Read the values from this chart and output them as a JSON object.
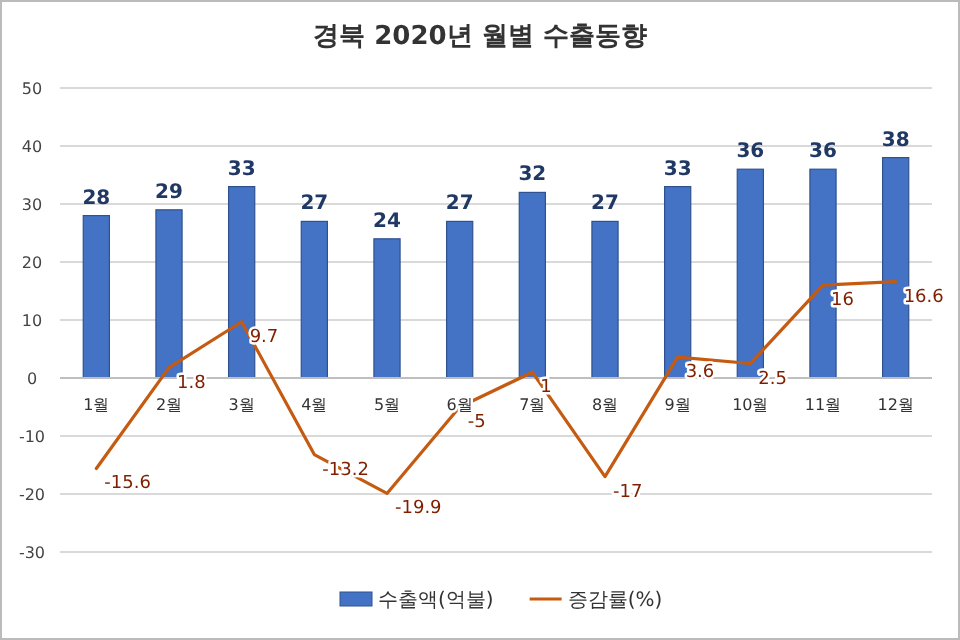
{
  "chart_data": {
    "type": "bar",
    "title": "경북 2020년 월별 수출동향",
    "categories": [
      "1월",
      "2월",
      "3월",
      "4월",
      "5월",
      "6월",
      "7월",
      "8월",
      "9월",
      "10월",
      "11월",
      "12월"
    ],
    "series": [
      {
        "name": "수출액(억불)",
        "color": "#4472c4",
        "values": [
          28,
          29,
          33,
          27,
          24,
          27,
          32,
          27,
          33,
          36,
          36,
          38
        ]
      },
      {
        "name": "증감률(%)",
        "type": "line",
        "color": "#c55a11",
        "values": [
          -15.6,
          1.8,
          9.7,
          -13.2,
          -19.9,
          -5,
          1,
          -17,
          3.6,
          2.5,
          16,
          16.6
        ]
      }
    ],
    "ylim": [
      -30,
      50
    ],
    "yticks": [
      -30,
      -20,
      -10,
      0,
      10,
      20,
      30,
      40,
      50
    ],
    "grid": "y",
    "legend": "bottom",
    "data_labels": true,
    "marker": "none",
    "line_style": "solid"
  }
}
